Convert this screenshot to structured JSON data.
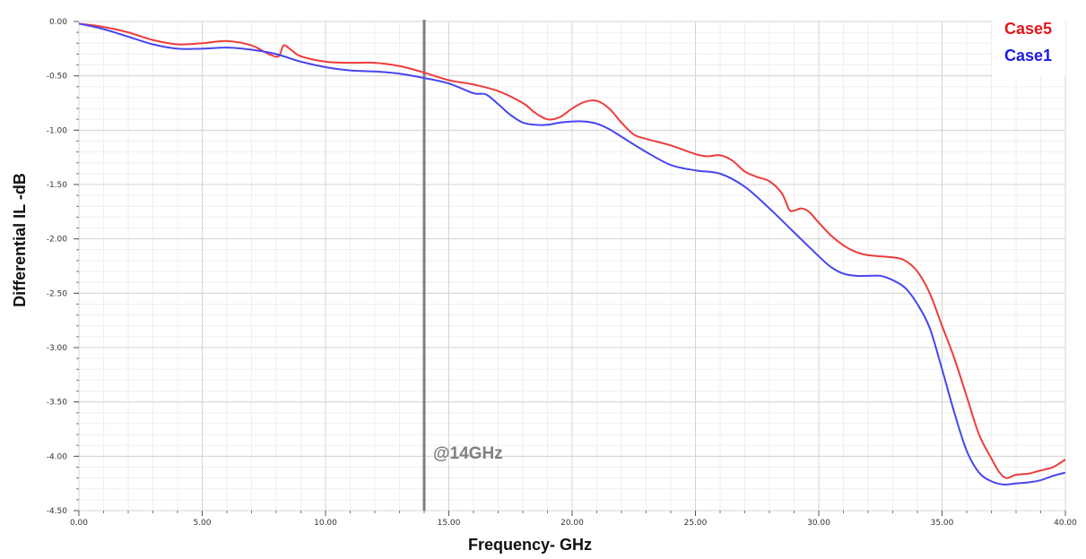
{
  "chart_data": {
    "type": "line",
    "title": "",
    "xlabel": "Frequency- GHz",
    "ylabel": "Differential IL -dB",
    "xlim": [
      0,
      40
    ],
    "ylim": [
      -4.5,
      0
    ],
    "xticks": [
      0,
      5,
      10,
      15,
      20,
      25,
      30,
      35,
      40
    ],
    "yticks": [
      0,
      -0.5,
      -1.0,
      -1.5,
      -2.0,
      -2.5,
      -3.0,
      -3.5,
      -4.0,
      -4.5
    ],
    "xtick_labels": [
      "0.00",
      "5.00",
      "10.00",
      "15.00",
      "20.00",
      "25.00",
      "30.00",
      "35.00",
      "40.00"
    ],
    "ytick_labels": [
      "0.00",
      "-0.50",
      "-1.00",
      "-1.50",
      "-2.00",
      "-2.50",
      "-3.00",
      "-3.50",
      "-4.00",
      "-4.50"
    ],
    "grid": true,
    "legend_position": "top-right",
    "marker": {
      "x": 14,
      "label": "@14GHz",
      "color": "#7f7f7f"
    },
    "series": [
      {
        "name": "Case5",
        "color": "#ee3b3b",
        "legend_color": "#e0161c",
        "x": [
          0,
          1,
          2,
          3,
          4,
          5,
          6,
          7,
          7.7,
          8.1,
          8.3,
          8.6,
          9,
          10,
          11,
          12,
          13,
          14,
          15,
          16,
          17,
          18,
          18.5,
          19,
          19.5,
          20,
          20.5,
          21,
          21.5,
          22,
          22.5,
          23,
          24,
          25,
          25.5,
          26,
          26.5,
          27,
          27.5,
          28,
          28.5,
          28.8,
          29,
          29.3,
          29.6,
          30,
          30.5,
          31,
          31.5,
          32,
          33,
          33.5,
          34,
          34.5,
          35,
          35.5,
          36,
          36.5,
          37,
          37.3,
          37.6,
          38,
          38.5,
          39,
          39.5,
          40
        ],
        "y": [
          -0.02,
          -0.05,
          -0.1,
          -0.17,
          -0.21,
          -0.2,
          -0.18,
          -0.22,
          -0.3,
          -0.32,
          -0.22,
          -0.26,
          -0.32,
          -0.37,
          -0.38,
          -0.38,
          -0.41,
          -0.47,
          -0.54,
          -0.58,
          -0.64,
          -0.75,
          -0.84,
          -0.9,
          -0.88,
          -0.8,
          -0.74,
          -0.73,
          -0.8,
          -0.93,
          -1.04,
          -1.08,
          -1.14,
          -1.22,
          -1.24,
          -1.23,
          -1.28,
          -1.38,
          -1.43,
          -1.47,
          -1.58,
          -1.73,
          -1.74,
          -1.72,
          -1.75,
          -1.85,
          -1.97,
          -2.06,
          -2.12,
          -2.15,
          -2.17,
          -2.2,
          -2.3,
          -2.5,
          -2.8,
          -3.1,
          -3.45,
          -3.8,
          -4.02,
          -4.14,
          -4.2,
          -4.17,
          -4.16,
          -4.13,
          -4.1,
          -4.03
        ]
      },
      {
        "name": "Case1",
        "color": "#4646ee",
        "legend_color": "#1c1ce0",
        "x": [
          0,
          1,
          2,
          3,
          4,
          5,
          6,
          7,
          8,
          9,
          10,
          11,
          12,
          13,
          14,
          15,
          16,
          16.5,
          17,
          17.5,
          18,
          18.5,
          19,
          19.5,
          20,
          20.5,
          21,
          21.5,
          22,
          23,
          24,
          25,
          26,
          27,
          28,
          29,
          30,
          30.5,
          31,
          31.5,
          32,
          32.5,
          33,
          33.5,
          34,
          34.5,
          35,
          35.5,
          36,
          36.5,
          37,
          37.5,
          38,
          38.5,
          39,
          39.5,
          40
        ],
        "y": [
          -0.02,
          -0.07,
          -0.14,
          -0.21,
          -0.25,
          -0.25,
          -0.24,
          -0.26,
          -0.3,
          -0.37,
          -0.42,
          -0.45,
          -0.46,
          -0.48,
          -0.52,
          -0.57,
          -0.66,
          -0.67,
          -0.76,
          -0.86,
          -0.93,
          -0.95,
          -0.95,
          -0.93,
          -0.92,
          -0.92,
          -0.94,
          -0.99,
          -1.06,
          -1.2,
          -1.32,
          -1.37,
          -1.4,
          -1.52,
          -1.72,
          -1.94,
          -2.16,
          -2.26,
          -2.32,
          -2.34,
          -2.34,
          -2.34,
          -2.38,
          -2.45,
          -2.6,
          -2.82,
          -3.2,
          -3.6,
          -3.95,
          -4.15,
          -4.23,
          -4.26,
          -4.25,
          -4.24,
          -4.22,
          -4.18,
          -4.15
        ]
      }
    ]
  }
}
